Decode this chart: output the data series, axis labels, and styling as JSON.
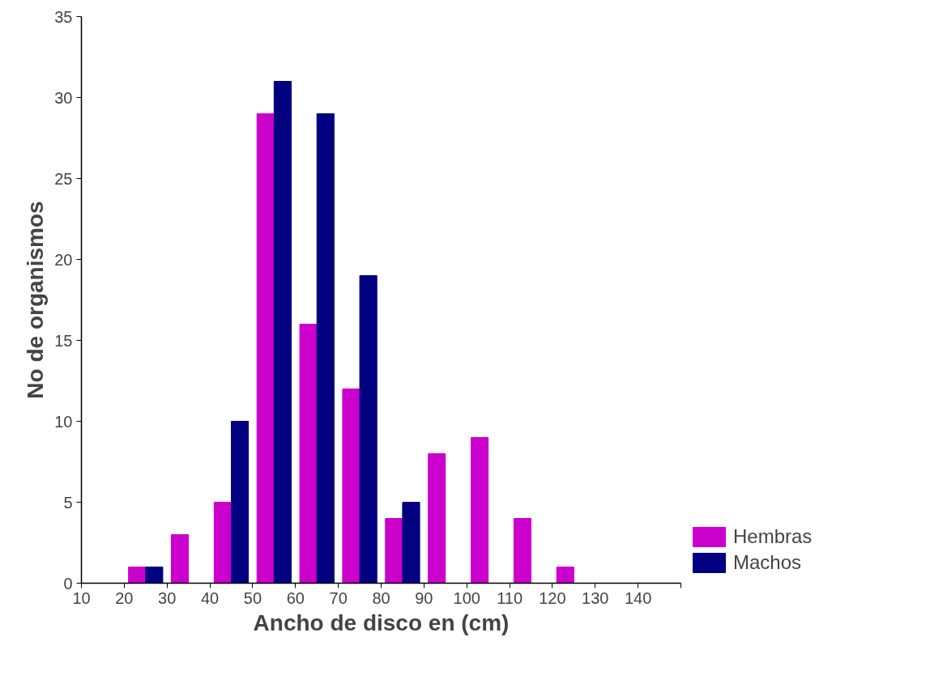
{
  "chart_data": {
    "type": "bar",
    "xlabel": "Ancho de disco en (cm)",
    "ylabel": "No de organismos",
    "x": [
      25,
      35,
      45,
      55,
      65,
      75,
      85,
      95,
      105,
      115,
      125
    ],
    "series": [
      {
        "name": "Hembras",
        "color": "#cc00cc",
        "values": [
          1,
          3,
          5,
          29,
          16,
          12,
          4,
          8,
          9,
          4,
          1
        ]
      },
      {
        "name": "Machos",
        "color": "#000080",
        "values": [
          1,
          0,
          10,
          31,
          29,
          19,
          5,
          0,
          0,
          0,
          0
        ]
      }
    ],
    "xlim": [
      10,
      150
    ],
    "xticks": [
      10,
      20,
      30,
      40,
      50,
      60,
      70,
      80,
      90,
      100,
      110,
      120,
      130,
      140,
      {
        "value": 150,
        "label": null
      }
    ],
    "ylim": [
      0,
      35
    ],
    "yticks": [
      0,
      5,
      10,
      15,
      20,
      25,
      30,
      35
    ],
    "grid": false,
    "legend": "bottom right"
  }
}
